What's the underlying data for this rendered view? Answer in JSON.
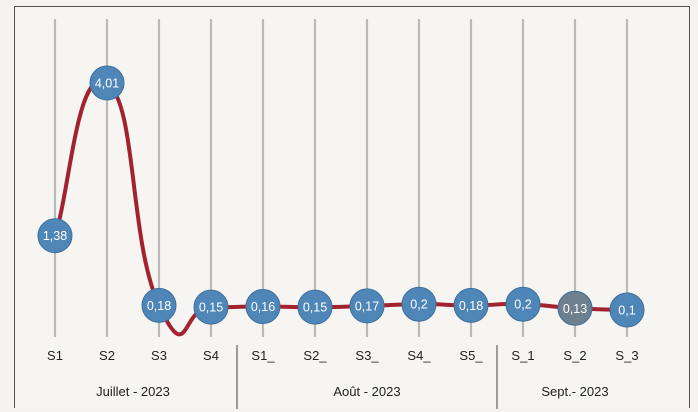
{
  "chart_data": {
    "type": "line",
    "title": "",
    "xlabel": "",
    "ylabel": "",
    "categories": [
      "S1",
      "S2",
      "S3",
      "S4",
      "S1_",
      "S2_",
      "S3_",
      "S4_",
      "S5_",
      "S_1",
      "S_2",
      "S_3"
    ],
    "series": [
      {
        "values": [
          1.38,
          4.01,
          0.18,
          0.15,
          0.16,
          0.15,
          0.17,
          0.2,
          0.18,
          0.2,
          0.13,
          0.1
        ],
        "labels": [
          "1,38",
          "4,01",
          "0,18",
          "0,15",
          "0,16",
          "0,15",
          "0,17",
          "0,2",
          "0,18",
          "0,2",
          "0,13",
          "0,1"
        ]
      }
    ],
    "groups": [
      {
        "label": "Juillet - 2023",
        "count": 4
      },
      {
        "label": "Août - 2023",
        "count": 5
      },
      {
        "label": "Sept.- 2023",
        "count": 3
      }
    ],
    "ylim": [
      0,
      4.2
    ],
    "grid": "vertical drop lines per category",
    "legend": "none",
    "colors": {
      "line": "#a3222f",
      "marker": "#4f86b8",
      "marker_muted": "#6e7f8e",
      "dropline": "#b9b9b9",
      "background": "#f6f5f1"
    }
  }
}
